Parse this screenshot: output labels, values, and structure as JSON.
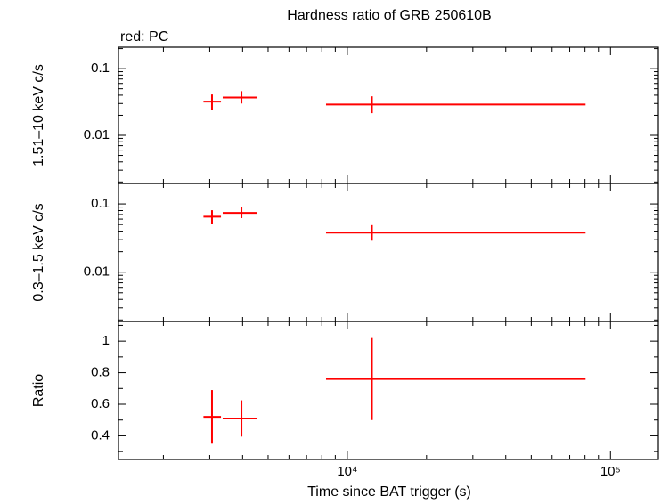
{
  "chart_data": [
    {
      "type": "errorbar",
      "title": "Hardness ratio of GRB 250610B",
      "annotation": "red: PC",
      "ylabel": "1.51–10 keV c/s",
      "xlog": true,
      "ylog": true,
      "color": "#ff0000",
      "x": [
        3060,
        3960,
        12400
      ],
      "xerr_minus": [
        220,
        600,
        4100
      ],
      "xerr_plus": [
        250,
        560,
        68000
      ],
      "values": [
        0.032,
        0.037,
        0.029
      ],
      "yerr_minus": [
        0.008,
        0.007,
        0.0075
      ],
      "yerr_plus": [
        0.009,
        0.009,
        0.0095
      ],
      "xlim": [
        1350,
        152000
      ],
      "xticks": [
        10000,
        100000
      ],
      "xminorticks": [
        2000,
        3000,
        4000,
        5000,
        6000,
        7000,
        8000,
        9000,
        20000,
        30000,
        40000,
        50000,
        60000,
        70000,
        80000,
        90000
      ],
      "ylim": [
        0.0019,
        0.21
      ],
      "yticks": [
        0.01,
        0.1
      ],
      "yminorticks": [
        0.002,
        0.003,
        0.004,
        0.005,
        0.006,
        0.007,
        0.008,
        0.009,
        0.02,
        0.03,
        0.04,
        0.05,
        0.06,
        0.07,
        0.08,
        0.09,
        0.2
      ]
    },
    {
      "type": "errorbar",
      "ylabel": "0.3–1.5 keV c/s",
      "xlog": true,
      "ylog": true,
      "color": "#ff0000",
      "x": [
        3060,
        3960,
        12400
      ],
      "xerr_minus": [
        220,
        600,
        4100
      ],
      "xerr_plus": [
        250,
        560,
        68000
      ],
      "values": [
        0.065,
        0.074,
        0.038
      ],
      "yerr_minus": [
        0.014,
        0.012,
        0.009
      ],
      "yerr_plus": [
        0.016,
        0.015,
        0.011
      ],
      "xlim": [
        1350,
        152000
      ],
      "xticks": [
        10000,
        100000
      ],
      "xminorticks": [
        2000,
        3000,
        4000,
        5000,
        6000,
        7000,
        8000,
        9000,
        20000,
        30000,
        40000,
        50000,
        60000,
        70000,
        80000,
        90000
      ],
      "ylim": [
        0.0019,
        0.2
      ],
      "yticks": [
        0.01,
        0.1
      ],
      "yminorticks": [
        0.002,
        0.003,
        0.004,
        0.005,
        0.006,
        0.007,
        0.008,
        0.009,
        0.02,
        0.03,
        0.04,
        0.05,
        0.06,
        0.07,
        0.08,
        0.09,
        0.2
      ]
    },
    {
      "type": "errorbar",
      "ylabel": "Ratio",
      "xlabel": "Time since BAT trigger (s)",
      "xlog": true,
      "ylog": false,
      "color": "#ff0000",
      "x": [
        3060,
        3960,
        12400
      ],
      "xerr_minus": [
        220,
        600,
        4100
      ],
      "xerr_plus": [
        250,
        560,
        68000
      ],
      "values": [
        0.52,
        0.51,
        0.76
      ],
      "yerr_minus": [
        0.17,
        0.115,
        0.26
      ],
      "yerr_plus": [
        0.17,
        0.115,
        0.26
      ],
      "xlim": [
        1350,
        152000
      ],
      "xticks": [
        {
          "value": 10000,
          "label": "10⁴"
        },
        {
          "value": 100000,
          "label": "10⁵"
        }
      ],
      "xminorticks": [
        2000,
        3000,
        4000,
        5000,
        6000,
        7000,
        8000,
        9000,
        20000,
        30000,
        40000,
        50000,
        60000,
        70000,
        80000,
        90000
      ],
      "ylim": [
        0.25,
        1.125
      ],
      "yticks": [
        0.4,
        0.6,
        0.8,
        1
      ],
      "yminorticks": [
        0.3,
        0.5,
        0.7,
        0.9,
        1.1
      ]
    }
  ]
}
